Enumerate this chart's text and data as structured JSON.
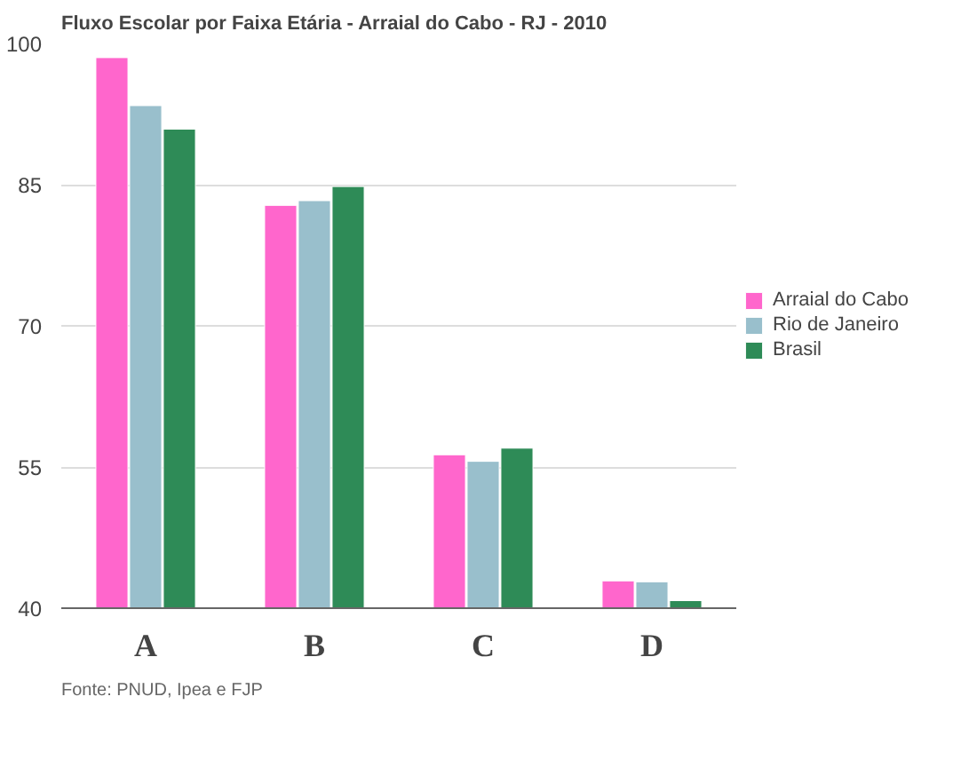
{
  "chart_data": {
    "type": "bar",
    "title": "Fluxo Escolar por Faixa Etária - Arraial do Cabo - RJ - 2010",
    "categories": [
      "A",
      "B",
      "C",
      "D"
    ],
    "series": [
      {
        "name": "Arraial do Cabo",
        "color": "#ff66cc",
        "values": [
          98.5,
          82.8,
          56.3,
          42.9
        ]
      },
      {
        "name": "Rio de Janeiro",
        "color": "#99bfcc",
        "values": [
          93.4,
          83.3,
          55.6,
          42.8
        ]
      },
      {
        "name": "Brasil",
        "color": "#2e8b57",
        "values": [
          90.9,
          84.8,
          57.0,
          40.8
        ]
      }
    ],
    "ylim": [
      40,
      100
    ],
    "yticks": [
      40,
      55,
      70,
      85,
      100
    ],
    "grid": "y",
    "legend": "right",
    "annotations": [
      "Fonte: PNUD, Ipea e FJP"
    ]
  }
}
